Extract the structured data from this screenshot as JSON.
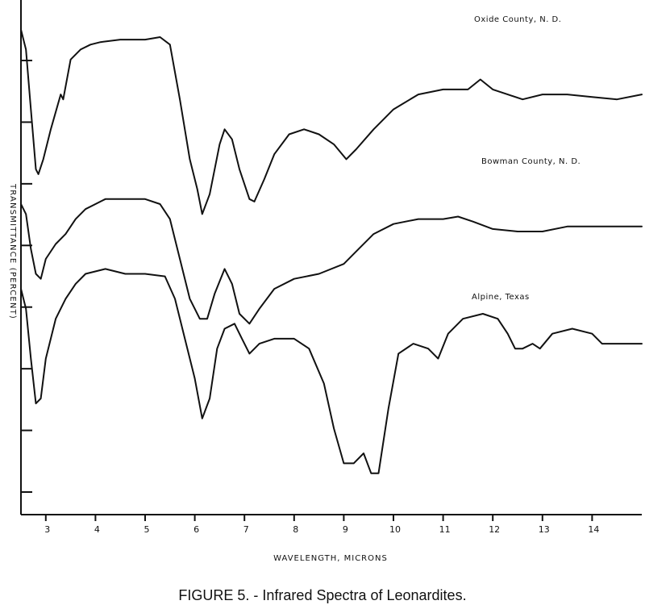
{
  "caption": "FIGURE 5. - Infrared Spectra of Leonardites.",
  "chart_data": {
    "type": "line",
    "title": "",
    "xlabel": "WAVELENGTH, MICRONS",
    "ylabel": "TRANSMITTANCE (PERCENT)",
    "xlim": [
      2.5,
      15.0
    ],
    "ylim": [
      0,
      100
    ],
    "xticks": [
      3,
      4,
      5,
      6,
      7,
      8,
      9,
      10,
      11,
      12,
      13,
      14
    ],
    "ytick_count": 8,
    "series": [
      {
        "name": "Oxide County, N. D.",
        "points": [
          [
            2.5,
            96
          ],
          [
            2.6,
            92
          ],
          [
            2.7,
            80
          ],
          [
            2.8,
            68
          ],
          [
            2.85,
            67
          ],
          [
            2.95,
            70
          ],
          [
            3.1,
            76
          ],
          [
            3.3,
            83
          ],
          [
            3.35,
            82
          ],
          [
            3.5,
            90
          ],
          [
            3.7,
            92
          ],
          [
            3.9,
            93
          ],
          [
            4.1,
            93.5
          ],
          [
            4.5,
            94
          ],
          [
            5.0,
            94
          ],
          [
            5.3,
            94.5
          ],
          [
            5.5,
            93
          ],
          [
            5.7,
            82
          ],
          [
            5.9,
            70
          ],
          [
            6.05,
            64
          ],
          [
            6.15,
            59
          ],
          [
            6.3,
            63
          ],
          [
            6.5,
            73
          ],
          [
            6.6,
            76
          ],
          [
            6.75,
            74
          ],
          [
            6.9,
            68
          ],
          [
            7.1,
            62
          ],
          [
            7.2,
            61.5
          ],
          [
            7.4,
            66
          ],
          [
            7.6,
            71
          ],
          [
            7.9,
            75
          ],
          [
            8.2,
            76
          ],
          [
            8.5,
            75
          ],
          [
            8.8,
            73
          ],
          [
            9.05,
            70
          ],
          [
            9.25,
            72
          ],
          [
            9.6,
            76
          ],
          [
            10.0,
            80
          ],
          [
            10.5,
            83
          ],
          [
            11.0,
            84
          ],
          [
            11.5,
            84
          ],
          [
            11.75,
            86
          ],
          [
            12.0,
            84
          ],
          [
            12.3,
            83
          ],
          [
            12.6,
            82
          ],
          [
            13.0,
            83
          ],
          [
            13.5,
            83
          ],
          [
            14.0,
            82.5
          ],
          [
            14.5,
            82
          ],
          [
            15.0,
            83
          ]
        ]
      },
      {
        "name": "Bowman County, N. D.",
        "points": [
          [
            2.5,
            61
          ],
          [
            2.6,
            59
          ],
          [
            2.7,
            52
          ],
          [
            2.8,
            47
          ],
          [
            2.9,
            46
          ],
          [
            3.0,
            50
          ],
          [
            3.2,
            53
          ],
          [
            3.4,
            55
          ],
          [
            3.6,
            58
          ],
          [
            3.8,
            60
          ],
          [
            4.2,
            62
          ],
          [
            4.6,
            62
          ],
          [
            5.0,
            62
          ],
          [
            5.3,
            61
          ],
          [
            5.5,
            58
          ],
          [
            5.7,
            50
          ],
          [
            5.9,
            42
          ],
          [
            6.1,
            38
          ],
          [
            6.25,
            38
          ],
          [
            6.4,
            43
          ],
          [
            6.6,
            48
          ],
          [
            6.75,
            45
          ],
          [
            6.9,
            39
          ],
          [
            7.1,
            37
          ],
          [
            7.3,
            40
          ],
          [
            7.6,
            44
          ],
          [
            8.0,
            46
          ],
          [
            8.5,
            47
          ],
          [
            9.0,
            49
          ],
          [
            9.3,
            52
          ],
          [
            9.6,
            55
          ],
          [
            10.0,
            57
          ],
          [
            10.5,
            58
          ],
          [
            11.0,
            58
          ],
          [
            11.3,
            58.5
          ],
          [
            11.6,
            57.5
          ],
          [
            12.0,
            56
          ],
          [
            12.5,
            55.5
          ],
          [
            13.0,
            55.5
          ],
          [
            13.5,
            56.5
          ],
          [
            14.0,
            56.5
          ],
          [
            14.5,
            56.5
          ],
          [
            15.0,
            56.5
          ]
        ]
      },
      {
        "name": "Alpine, Texas",
        "points": [
          [
            2.5,
            44
          ],
          [
            2.6,
            40
          ],
          [
            2.7,
            30
          ],
          [
            2.8,
            21
          ],
          [
            2.9,
            22
          ],
          [
            3.0,
            30
          ],
          [
            3.2,
            38
          ],
          [
            3.4,
            42
          ],
          [
            3.6,
            45
          ],
          [
            3.8,
            47
          ],
          [
            4.2,
            48
          ],
          [
            4.6,
            47
          ],
          [
            5.0,
            47
          ],
          [
            5.4,
            46.5
          ],
          [
            5.6,
            42
          ],
          [
            5.8,
            34
          ],
          [
            6.0,
            26
          ],
          [
            6.15,
            18
          ],
          [
            6.3,
            22
          ],
          [
            6.45,
            32
          ],
          [
            6.6,
            36
          ],
          [
            6.8,
            37
          ],
          [
            6.95,
            34
          ],
          [
            7.1,
            31
          ],
          [
            7.3,
            33
          ],
          [
            7.6,
            34
          ],
          [
            8.0,
            34
          ],
          [
            8.3,
            32
          ],
          [
            8.6,
            25
          ],
          [
            8.8,
            16
          ],
          [
            9.0,
            9
          ],
          [
            9.2,
            9
          ],
          [
            9.4,
            11
          ],
          [
            9.55,
            7
          ],
          [
            9.7,
            7
          ],
          [
            9.9,
            20
          ],
          [
            10.1,
            31
          ],
          [
            10.4,
            33
          ],
          [
            10.7,
            32
          ],
          [
            10.9,
            30
          ],
          [
            11.1,
            35
          ],
          [
            11.4,
            38
          ],
          [
            11.8,
            39
          ],
          [
            12.1,
            38
          ],
          [
            12.3,
            35
          ],
          [
            12.45,
            32
          ],
          [
            12.6,
            32
          ],
          [
            12.8,
            33
          ],
          [
            12.95,
            32
          ],
          [
            13.2,
            35
          ],
          [
            13.6,
            36
          ],
          [
            14.0,
            35
          ],
          [
            14.2,
            33
          ],
          [
            14.5,
            33
          ],
          [
            15.0,
            33
          ]
        ]
      }
    ]
  }
}
